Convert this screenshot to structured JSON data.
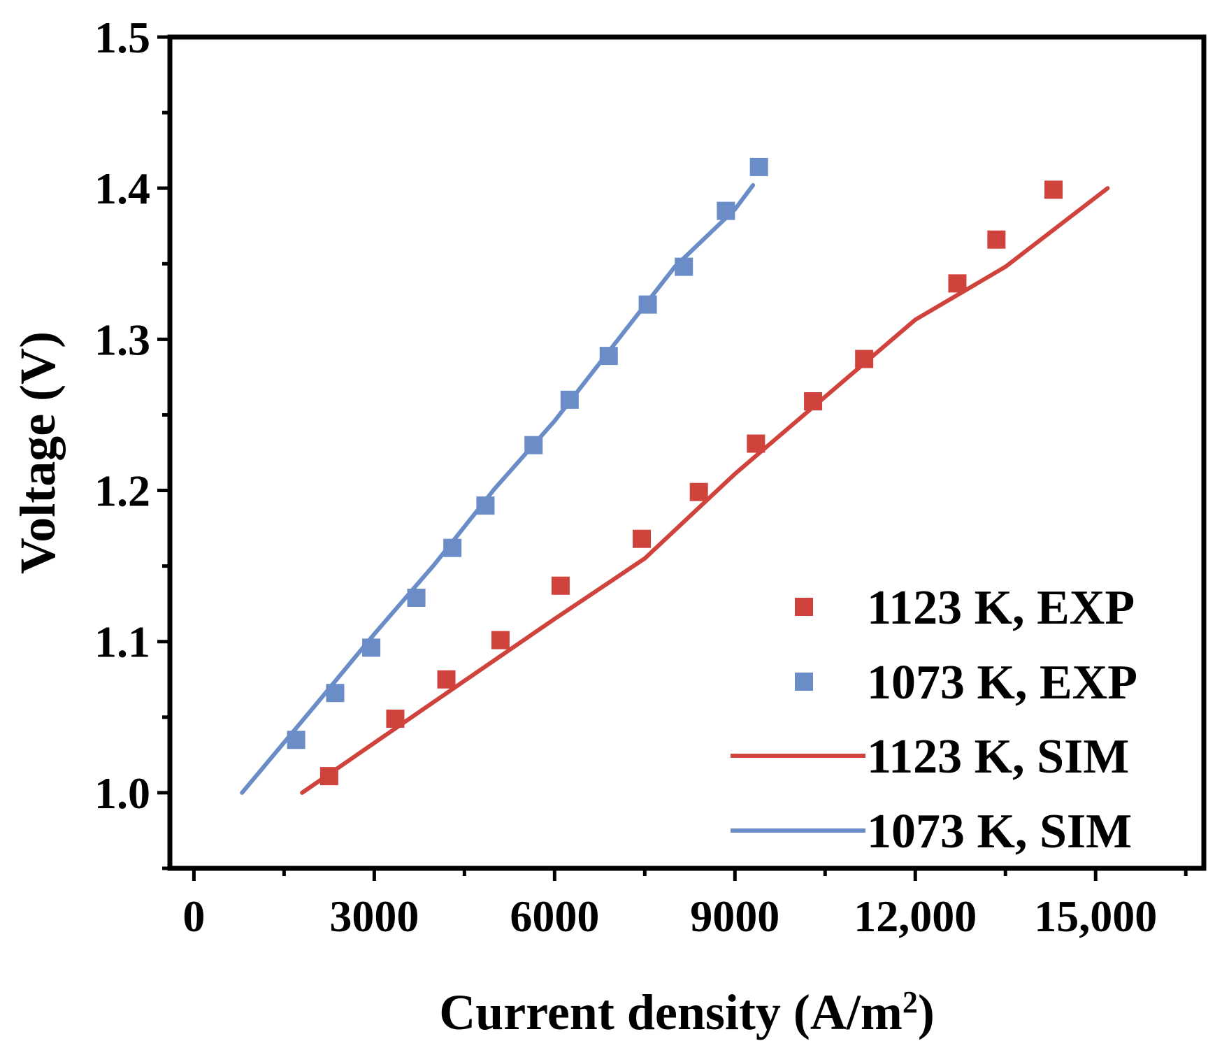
{
  "chart_data": {
    "type": "scatter",
    "xlabel": "Current density (A/m",
    "xlabel_sup": "2",
    "xlabel_close": ")",
    "ylabel": "Voltage (V)",
    "xlim": [
      -400,
      16800
    ],
    "ylim": [
      0.95,
      1.5
    ],
    "x_ticks": [
      {
        "value": 0,
        "label": "0"
      },
      {
        "value": 3000,
        "label": "3000"
      },
      {
        "value": 6000,
        "label": "6000"
      },
      {
        "value": 9000,
        "label": "9000"
      },
      {
        "value": 12000,
        "label": "12,000"
      },
      {
        "value": 15000,
        "label": "15,000"
      }
    ],
    "x_minor_ticks": [
      1500,
      4500,
      7500,
      10500,
      13500,
      16500
    ],
    "y_ticks": [
      {
        "value": 1.0,
        "label": "1.0"
      },
      {
        "value": 1.1,
        "label": "1.1"
      },
      {
        "value": 1.2,
        "label": "1.2"
      },
      {
        "value": 1.3,
        "label": "1.3"
      },
      {
        "value": 1.4,
        "label": "1.4"
      },
      {
        "value": 1.5,
        "label": "1.5"
      }
    ],
    "y_minor_ticks": [
      0.95,
      1.05,
      1.15,
      1.25,
      1.35,
      1.45
    ],
    "legend_position": "bottom-right",
    "series": [
      {
        "name": "1123 K, EXP",
        "kind": "scatter",
        "color": "#D0423C",
        "points": [
          [
            2250,
            1.011
          ],
          [
            3350,
            1.049
          ],
          [
            4200,
            1.075
          ],
          [
            5100,
            1.101
          ],
          [
            6100,
            1.137
          ],
          [
            7450,
            1.168
          ],
          [
            8400,
            1.199
          ],
          [
            9350,
            1.231
          ],
          [
            10300,
            1.259
          ],
          [
            11150,
            1.287
          ],
          [
            12700,
            1.337
          ],
          [
            13350,
            1.366
          ],
          [
            14300,
            1.399
          ]
        ]
      },
      {
        "name": "1073 K, EXP",
        "kind": "scatter",
        "color": "#6A8CC7",
        "points": [
          [
            1700,
            1.035
          ],
          [
            2350,
            1.066
          ],
          [
            2950,
            1.096
          ],
          [
            3700,
            1.129
          ],
          [
            4300,
            1.162
          ],
          [
            4850,
            1.19
          ],
          [
            5650,
            1.23
          ],
          [
            6250,
            1.26
          ],
          [
            6900,
            1.289
          ],
          [
            7550,
            1.323
          ],
          [
            8150,
            1.348
          ],
          [
            8850,
            1.385
          ],
          [
            9400,
            1.414
          ]
        ]
      },
      {
        "name": "1123 K, SIM",
        "kind": "line",
        "color": "#D0423C",
        "points": [
          [
            1800,
            1.0
          ],
          [
            3000,
            1.033
          ],
          [
            4500,
            1.074
          ],
          [
            6000,
            1.115
          ],
          [
            7500,
            1.155
          ],
          [
            9000,
            1.211
          ],
          [
            10500,
            1.262
          ],
          [
            12000,
            1.313
          ],
          [
            13500,
            1.348
          ],
          [
            15200,
            1.4
          ]
        ]
      },
      {
        "name": "1073 K, SIM",
        "kind": "line",
        "color": "#6A8CC7",
        "points": [
          [
            800,
            1.0
          ],
          [
            2000,
            1.057
          ],
          [
            3000,
            1.105
          ],
          [
            4000,
            1.151
          ],
          [
            5000,
            1.201
          ],
          [
            6000,
            1.246
          ],
          [
            7000,
            1.297
          ],
          [
            8000,
            1.348
          ],
          [
            9000,
            1.386
          ],
          [
            9300,
            1.402
          ]
        ]
      }
    ]
  }
}
